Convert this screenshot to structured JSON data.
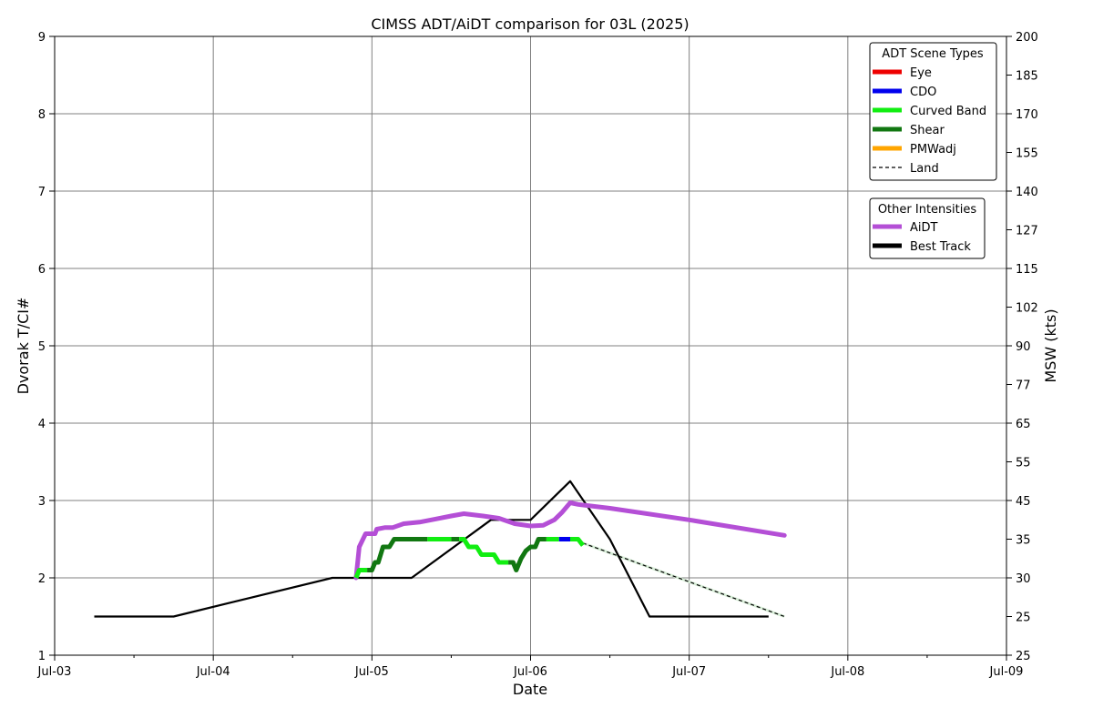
{
  "chart_data": {
    "type": "line",
    "title": "CIMSS ADT/AiDT comparison for 03L (2025)",
    "xlabel": "Date",
    "ylabel": "Dvorak T/CI#",
    "ylabel_right": "MSW (kts)",
    "xlim_days": [
      3,
      9
    ],
    "ylim": [
      1,
      9
    ],
    "grid": true,
    "x_ticks": [
      {
        "day": 3,
        "label": "Jul-03"
      },
      {
        "day": 4,
        "label": "Jul-04"
      },
      {
        "day": 5,
        "label": "Jul-05"
      },
      {
        "day": 6,
        "label": "Jul-06"
      },
      {
        "day": 7,
        "label": "Jul-07"
      },
      {
        "day": 8,
        "label": "Jul-08"
      },
      {
        "day": 9,
        "label": "Jul-09"
      }
    ],
    "y_ticks": [
      "1",
      "2",
      "3",
      "4",
      "5",
      "6",
      "7",
      "8",
      "9"
    ],
    "y_ticks_right": [
      "25",
      "25",
      "30",
      "35",
      "45",
      "55",
      "65",
      "77",
      "90",
      "102",
      "115",
      "127",
      "140",
      "155",
      "170",
      "185",
      "200"
    ],
    "legend_adt": {
      "title": "ADT Scene Types",
      "placement": "top-right",
      "items": [
        {
          "name": "Eye",
          "color": "#ee0000",
          "style": "solid"
        },
        {
          "name": "CDO",
          "color": "#0000ee",
          "style": "solid"
        },
        {
          "name": "Curved Band",
          "color": "#11ee11",
          "style": "solid"
        },
        {
          "name": "Shear",
          "color": "#117711",
          "style": "solid"
        },
        {
          "name": "PMWadj",
          "color": "#ffa500",
          "style": "solid"
        },
        {
          "name": "Land",
          "color": "#000000",
          "style": "dashed"
        }
      ]
    },
    "legend_other": {
      "title": "Other Intensities",
      "items": [
        {
          "name": "AiDT",
          "color": "#b44fd6",
          "style": "solid"
        },
        {
          "name": "Best Track",
          "color": "#000000",
          "style": "solid"
        }
      ]
    },
    "series": [
      {
        "name": "Best Track",
        "color": "#000000",
        "points": [
          [
            3.25,
            1.5
          ],
          [
            3.75,
            1.5
          ],
          [
            4.75,
            2.0
          ],
          [
            5.25,
            2.0
          ],
          [
            5.75,
            2.75
          ],
          [
            6.0,
            2.75
          ],
          [
            6.25,
            3.25
          ],
          [
            6.5,
            2.5
          ],
          [
            6.75,
            1.5
          ],
          [
            7.5,
            1.5
          ]
        ]
      },
      {
        "name": "AiDT",
        "color": "#b44fd6",
        "points": [
          [
            4.9,
            2.0
          ],
          [
            4.92,
            2.4
          ],
          [
            4.96,
            2.57
          ],
          [
            5.02,
            2.57
          ],
          [
            5.03,
            2.63
          ],
          [
            5.08,
            2.65
          ],
          [
            5.13,
            2.65
          ],
          [
            5.2,
            2.7
          ],
          [
            5.3,
            2.72
          ],
          [
            5.4,
            2.76
          ],
          [
            5.5,
            2.8
          ],
          [
            5.58,
            2.83
          ],
          [
            5.7,
            2.8
          ],
          [
            5.8,
            2.77
          ],
          [
            5.9,
            2.7
          ],
          [
            6.0,
            2.67
          ],
          [
            6.08,
            2.68
          ],
          [
            6.15,
            2.75
          ],
          [
            6.2,
            2.85
          ],
          [
            6.25,
            2.97
          ],
          [
            6.3,
            2.95
          ],
          [
            6.5,
            2.9
          ],
          [
            7.0,
            2.75
          ],
          [
            7.6,
            2.55
          ]
        ]
      },
      {
        "name": "Land",
        "color": "#000000",
        "points": [
          [
            6.33,
            2.45
          ],
          [
            7.6,
            1.5
          ]
        ]
      }
    ],
    "adt_segments": [
      {
        "scene": "Curved Band",
        "color": "#11ee11",
        "points": [
          [
            4.9,
            2.0
          ],
          [
            4.92,
            2.1
          ],
          [
            4.97,
            2.1
          ]
        ]
      },
      {
        "scene": "Shear",
        "color": "#117711",
        "points": [
          [
            4.97,
            2.1
          ],
          [
            5.0,
            2.1
          ],
          [
            5.02,
            2.2
          ],
          [
            5.04,
            2.2
          ],
          [
            5.07,
            2.4
          ],
          [
            5.11,
            2.4
          ],
          [
            5.14,
            2.5
          ],
          [
            5.35,
            2.5
          ]
        ]
      },
      {
        "scene": "Curved Band",
        "color": "#11ee11",
        "points": [
          [
            5.35,
            2.5
          ],
          [
            5.5,
            2.5
          ]
        ]
      },
      {
        "scene": "Shear",
        "color": "#117711",
        "points": [
          [
            5.5,
            2.5
          ],
          [
            5.55,
            2.5
          ]
        ]
      },
      {
        "scene": "Curved Band",
        "color": "#11ee11",
        "points": [
          [
            5.55,
            2.5
          ],
          [
            5.58,
            2.5
          ],
          [
            5.61,
            2.4
          ],
          [
            5.66,
            2.4
          ],
          [
            5.69,
            2.3
          ],
          [
            5.77,
            2.3
          ],
          [
            5.8,
            2.2
          ],
          [
            5.86,
            2.2
          ]
        ]
      },
      {
        "scene": "Shear",
        "color": "#117711",
        "points": [
          [
            5.86,
            2.2
          ],
          [
            5.89,
            2.2
          ],
          [
            5.91,
            2.1
          ],
          [
            5.94,
            2.25
          ],
          [
            5.97,
            2.35
          ],
          [
            6.0,
            2.4
          ],
          [
            6.03,
            2.4
          ],
          [
            6.05,
            2.5
          ],
          [
            6.1,
            2.5
          ]
        ]
      },
      {
        "scene": "Curved Band",
        "color": "#11ee11",
        "points": [
          [
            6.1,
            2.5
          ],
          [
            6.18,
            2.5
          ]
        ]
      },
      {
        "scene": "CDO",
        "color": "#0000ee",
        "points": [
          [
            6.18,
            2.5
          ],
          [
            6.25,
            2.5
          ]
        ]
      },
      {
        "scene": "Curved Band",
        "color": "#11ee11",
        "points": [
          [
            6.25,
            2.5
          ],
          [
            6.3,
            2.5
          ],
          [
            6.33,
            2.42
          ]
        ]
      }
    ]
  }
}
